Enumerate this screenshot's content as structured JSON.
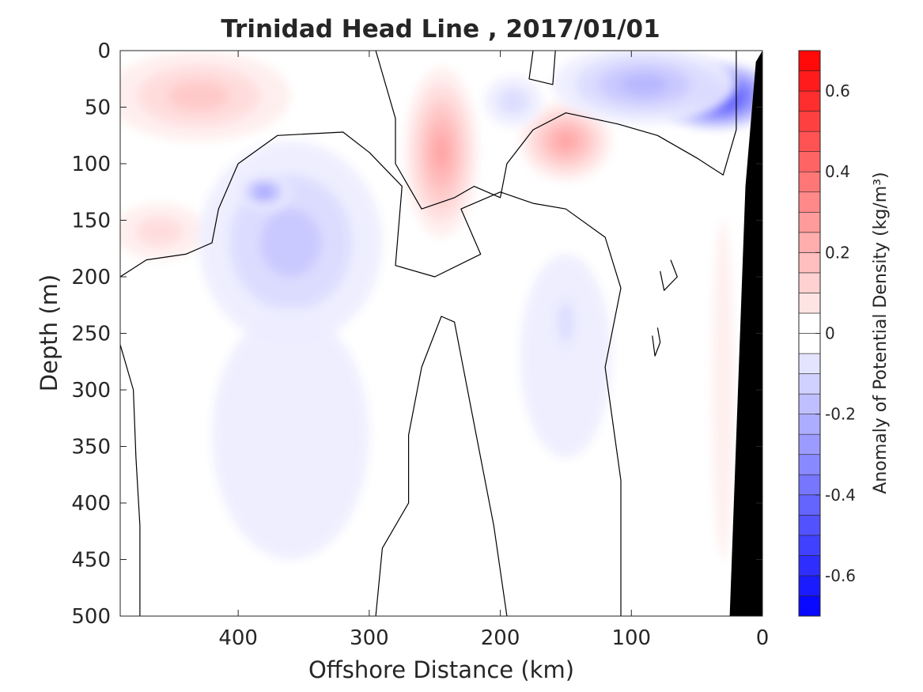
{
  "chart_data": {
    "type": "heatmap",
    "title": "Trinidad Head Line , 2017/01/01",
    "xlabel": "Offshore Distance (km)",
    "ylabel": "Depth (m)",
    "xlim": [
      490,
      0
    ],
    "ylim": [
      0,
      500
    ],
    "x_ticks": [
      "400",
      "300",
      "200",
      "100",
      "0"
    ],
    "x_tick_values": [
      400,
      300,
      200,
      100,
      0
    ],
    "y_ticks": [
      "0",
      "50",
      "100",
      "150",
      "200",
      "250",
      "300",
      "350",
      "400",
      "450",
      "500"
    ],
    "y_tick_values": [
      0,
      50,
      100,
      150,
      200,
      250,
      300,
      350,
      400,
      450,
      500
    ],
    "colorbar": {
      "label": "Anomaly of Potential Density (kg/m³)",
      "range": [
        -0.7,
        0.7
      ],
      "levels": 28,
      "ticks": [
        "0.6",
        "0.4",
        "0.2",
        "0",
        "-0.2",
        "-0.4",
        "-0.6"
      ],
      "tick_values": [
        0.6,
        0.4,
        0.2,
        0,
        -0.2,
        -0.4,
        -0.6
      ],
      "colormap": "blue-white-red"
    },
    "features": [
      {
        "type": "anomaly",
        "x": 430,
        "y": 40,
        "rx": 70,
        "ry": 40,
        "value": 0.15
      },
      {
        "type": "anomaly",
        "x": 460,
        "y": 160,
        "rx": 35,
        "ry": 25,
        "value": 0.08
      },
      {
        "type": "anomaly",
        "x": 245,
        "y": 90,
        "rx": 28,
        "ry": 75,
        "value": 0.25
      },
      {
        "type": "anomaly",
        "x": 150,
        "y": 80,
        "rx": 35,
        "ry": 35,
        "value": 0.25
      },
      {
        "type": "anomaly",
        "x": 35,
        "y": 40,
        "rx": 50,
        "ry": 30,
        "value": -0.6
      },
      {
        "type": "anomaly",
        "x": 90,
        "y": 30,
        "rx": 70,
        "ry": 35,
        "value": -0.2
      },
      {
        "type": "anomaly",
        "x": 190,
        "y": 45,
        "rx": 22,
        "ry": 22,
        "value": -0.1
      },
      {
        "type": "anomaly",
        "x": 360,
        "y": 170,
        "rx": 70,
        "ry": 90,
        "value": -0.15
      },
      {
        "type": "anomaly",
        "x": 380,
        "y": 125,
        "rx": 20,
        "ry": 15,
        "value": -0.25
      },
      {
        "type": "anomaly",
        "x": 360,
        "y": 340,
        "rx": 60,
        "ry": 110,
        "value": -0.05
      },
      {
        "type": "anomaly",
        "x": 150,
        "y": 270,
        "rx": 35,
        "ry": 90,
        "value": -0.06
      },
      {
        "type": "anomaly",
        "x": 150,
        "y": 240,
        "rx": 12,
        "ry": 35,
        "value": -0.12
      },
      {
        "type": "anomaly",
        "x": 30,
        "y": 300,
        "rx": 8,
        "ry": 150,
        "value": 0.06
      }
    ],
    "zero_contours": [
      [
        [
          490,
          200
        ],
        [
          470,
          185
        ],
        [
          440,
          180
        ],
        [
          420,
          170
        ],
        [
          415,
          140
        ],
        [
          400,
          100
        ],
        [
          370,
          75
        ],
        [
          320,
          72
        ],
        [
          300,
          90
        ],
        [
          275,
          120
        ],
        [
          280,
          190
        ],
        [
          250,
          200
        ],
        [
          215,
          180
        ],
        [
          230,
          140
        ],
        [
          200,
          125
        ],
        [
          175,
          135
        ],
        [
          150,
          140
        ],
        [
          120,
          165
        ],
        [
          108,
          210
        ],
        [
          120,
          280
        ],
        [
          108,
          380
        ],
        [
          108,
          500
        ]
      ],
      [
        [
          490,
          260
        ],
        [
          480,
          300
        ],
        [
          478,
          360
        ],
        [
          475,
          420
        ],
        [
          475,
          500
        ]
      ],
      [
        [
          295,
          500
        ],
        [
          290,
          440
        ],
        [
          270,
          400
        ],
        [
          270,
          340
        ],
        [
          260,
          280
        ],
        [
          245,
          235
        ],
        [
          235,
          240
        ],
        [
          220,
          330
        ],
        [
          205,
          420
        ],
        [
          195,
          500
        ]
      ],
      [
        [
          295,
          0
        ],
        [
          280,
          60
        ],
        [
          280,
          100
        ],
        [
          260,
          140
        ],
        [
          235,
          130
        ],
        [
          220,
          120
        ],
        [
          200,
          130
        ],
        [
          195,
          100
        ],
        [
          175,
          70
        ],
        [
          150,
          55
        ],
        [
          110,
          65
        ],
        [
          80,
          75
        ],
        [
          50,
          95
        ],
        [
          30,
          110
        ],
        [
          20,
          70
        ],
        [
          20,
          0
        ]
      ],
      [
        [
          175,
          0
        ],
        [
          178,
          25
        ],
        [
          160,
          30
        ],
        [
          158,
          0
        ]
      ],
      [
        [
          70,
          185
        ],
        [
          65,
          200
        ],
        [
          75,
          212
        ],
        [
          78,
          195
        ]
      ],
      [
        [
          80,
          245
        ],
        [
          78,
          258
        ],
        [
          82,
          270
        ],
        [
          84,
          252
        ]
      ]
    ],
    "shelf": [
      [
        0,
        0
      ],
      [
        5,
        10
      ],
      [
        13,
        120
      ],
      [
        25,
        500
      ],
      [
        0,
        500
      ]
    ]
  }
}
